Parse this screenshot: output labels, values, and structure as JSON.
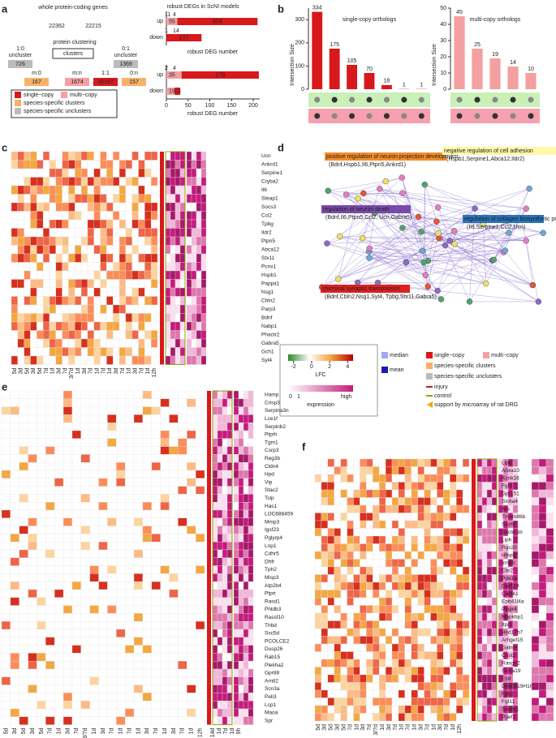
{
  "panel_labels": [
    "a",
    "b",
    "c",
    "d",
    "e",
    "f"
  ],
  "a": {
    "title": "whole protein-coding genes",
    "mouse_total": 22362,
    "rat_total": 22215,
    "step": "protein clustering",
    "clusters": "clusters",
    "unclusters": [
      {
        "ratio": "1:0",
        "label": "uncluster",
        "value": 726
      },
      {
        "ratio": "0:1",
        "label": "uncluster",
        "value": 1369
      }
    ],
    "groups": [
      {
        "ratio": "m:0",
        "value": 167
      },
      {
        "ratio": "m:n",
        "value": 1674
      },
      {
        "ratio": "1:1",
        "value": 16197
      },
      {
        "ratio": "0:n",
        "value": 157
      }
    ],
    "legend": [
      "single−copy",
      "multi−copy",
      "species-specific clusters",
      "species-specific unclusters"
    ],
    "deg_title": "robust DEGs in ScNI models",
    "rows": [
      "up",
      "down"
    ],
    "xlabel": "robust DEG number",
    "mouse_bars": {
      "xlim": [
        0,
        470
      ],
      "up": {
        "small": [
          11,
          4
        ],
        "multi": 55,
        "single": 404
      },
      "down": {
        "small": [
          1,
          14
        ],
        "single": 177
      }
    },
    "rat_bars": {
      "xlim": [
        0,
        215
      ],
      "xticks": [
        0,
        50,
        100,
        150,
        200
      ],
      "up": {
        "small": [
          2,
          4
        ],
        "multi": 35,
        "single": 178
      },
      "down": {
        "multi": 19,
        "single": 13
      }
    }
  },
  "b": {
    "ylabel": "Intersection Size",
    "single": {
      "title": "single-copy orthologs",
      "values": [
        334,
        175,
        105,
        70,
        18,
        1,
        1
      ],
      "ylim": [
        0,
        350
      ],
      "yticks": [
        0,
        100,
        200,
        300
      ]
    },
    "multi": {
      "title": "multi-copy orthologs",
      "values": [
        45,
        25,
        19,
        14,
        10
      ],
      "ylim": [
        0,
        50
      ],
      "yticks": [
        0,
        10,
        20,
        30,
        40,
        50
      ]
    }
  },
  "c": {
    "genes": [
      "Ucn",
      "Ankrd1",
      "Serpine1",
      "Cryba2",
      "Il6",
      "Steap1",
      "Socs3",
      "Ccl2",
      "Tpbg",
      "Ildr2",
      "Ptpn5",
      "Abca12",
      "Stx11",
      "Pcnx1",
      "Hspb1",
      "Pappa1",
      "Nsg1",
      "Cbln2",
      "Parp3",
      "Bdnf",
      "Nabp1",
      "Phactr2",
      "Gabra5",
      "Gch1",
      "Syt4"
    ]
  },
  "d": {
    "terms": [
      {
        "name": "positive regulation of neuron projection development",
        "genes": "(Bdnf,Hspb1,Il6,Ptpn5,Ankrd1)"
      },
      {
        "name": "negative regulation of cell adhesion",
        "genes": "(Hspb1,Serpine1,Abca12,Ildr2)"
      },
      {
        "name": "regulation of neuron death",
        "genes": "(Bdnf,Il6,Ptpn5,Ccl2, Ucn,Gabra5)"
      },
      {
        "name": "regulation of collagen biosynthetic process",
        "genes": "(Il6,Serpine1,Ccl2,Ucn)"
      },
      {
        "name": "chemical synaptic transmission",
        "genes": "(Bdnf,Cbln2,Nsg1,Syt4, Tpbg,Stx11,Gabra5)"
      }
    ]
  },
  "legend": {
    "lfc": "LFC",
    "lfc_ticks": [
      -2,
      0,
      2,
      4
    ],
    "expression": "expression",
    "expr_ticks": [
      0,
      1
    ],
    "high": "high",
    "items": [
      "median",
      "mean",
      "single−copy",
      "multi−copy",
      "species-specific clusters",
      "species-specific unclusters",
      "injury",
      "control",
      "support by microarray of rat DRG"
    ]
  },
  "e": {
    "genes": [
      "Hamp",
      "Crisp3",
      "Serpina3n",
      "Lce1f",
      "Serpinb2",
      "Ptprh",
      "Tgm1",
      "Csrp3",
      "Reg3b",
      "Cldn4",
      "Hpd",
      "Vip",
      "Stac2",
      "Tslp",
      "Has1",
      "LOC688459",
      "Mmp3",
      "Igsf23",
      "Pglyrp4",
      "Lnp1",
      "Cdhr5",
      "Dhfr",
      "Tph2",
      "Misp3",
      "Atp2b4",
      "Ptprt",
      "Rasd1",
      "Phldb3",
      "Rassf10",
      "Thbd",
      "Ssc5d",
      "PCOLCE2",
      "Dusp26",
      "Rab15",
      "Plekha2",
      "Gpr88",
      "Arntl2",
      "Scn3a",
      "Peli3",
      "Lcp1",
      "Maoa",
      "Spr"
    ]
  },
  "f": {
    "genes": [
      "Lipn",
      "Anxa10",
      "Kcnk16",
      "Fgf3",
      "Gpr151",
      "Slc6a4",
      "Nts",
      "Tmem88b",
      "Sez6l",
      "Sectm1b",
      "Liph",
      "Rgs20",
      "Hhipl1",
      "Inhbb",
      "Cbr2",
      "Pde1a",
      "Gpr119",
      "Camk1",
      "Epb41l4a",
      "Plppr4",
      "Mapkbp1",
      "Itpr1",
      "Hsd17b7",
      "Arhgef15",
      "Galnt9",
      "Chst2",
      "Rasgrf2",
      "Slc6a19",
      "Esd",
      "D430019H16Rik",
      "Fyb2",
      "Fgf11",
      "Sertm1",
      "Ppef1"
    ]
  },
  "times": [
    "5d",
    "3d",
    "5d",
    "3d",
    "5d",
    "7d",
    "1d",
    "3d",
    "7d",
    "3/7d",
    "1d",
    "3d",
    "7d",
    "1d",
    "7d",
    "1d",
    "3d",
    "7d",
    "1d",
    "3d",
    "7d",
    "1d",
    "12h"
  ],
  "rat_times": [
    "14d",
    "1d",
    "7d",
    "1d",
    "9h"
  ]
}
